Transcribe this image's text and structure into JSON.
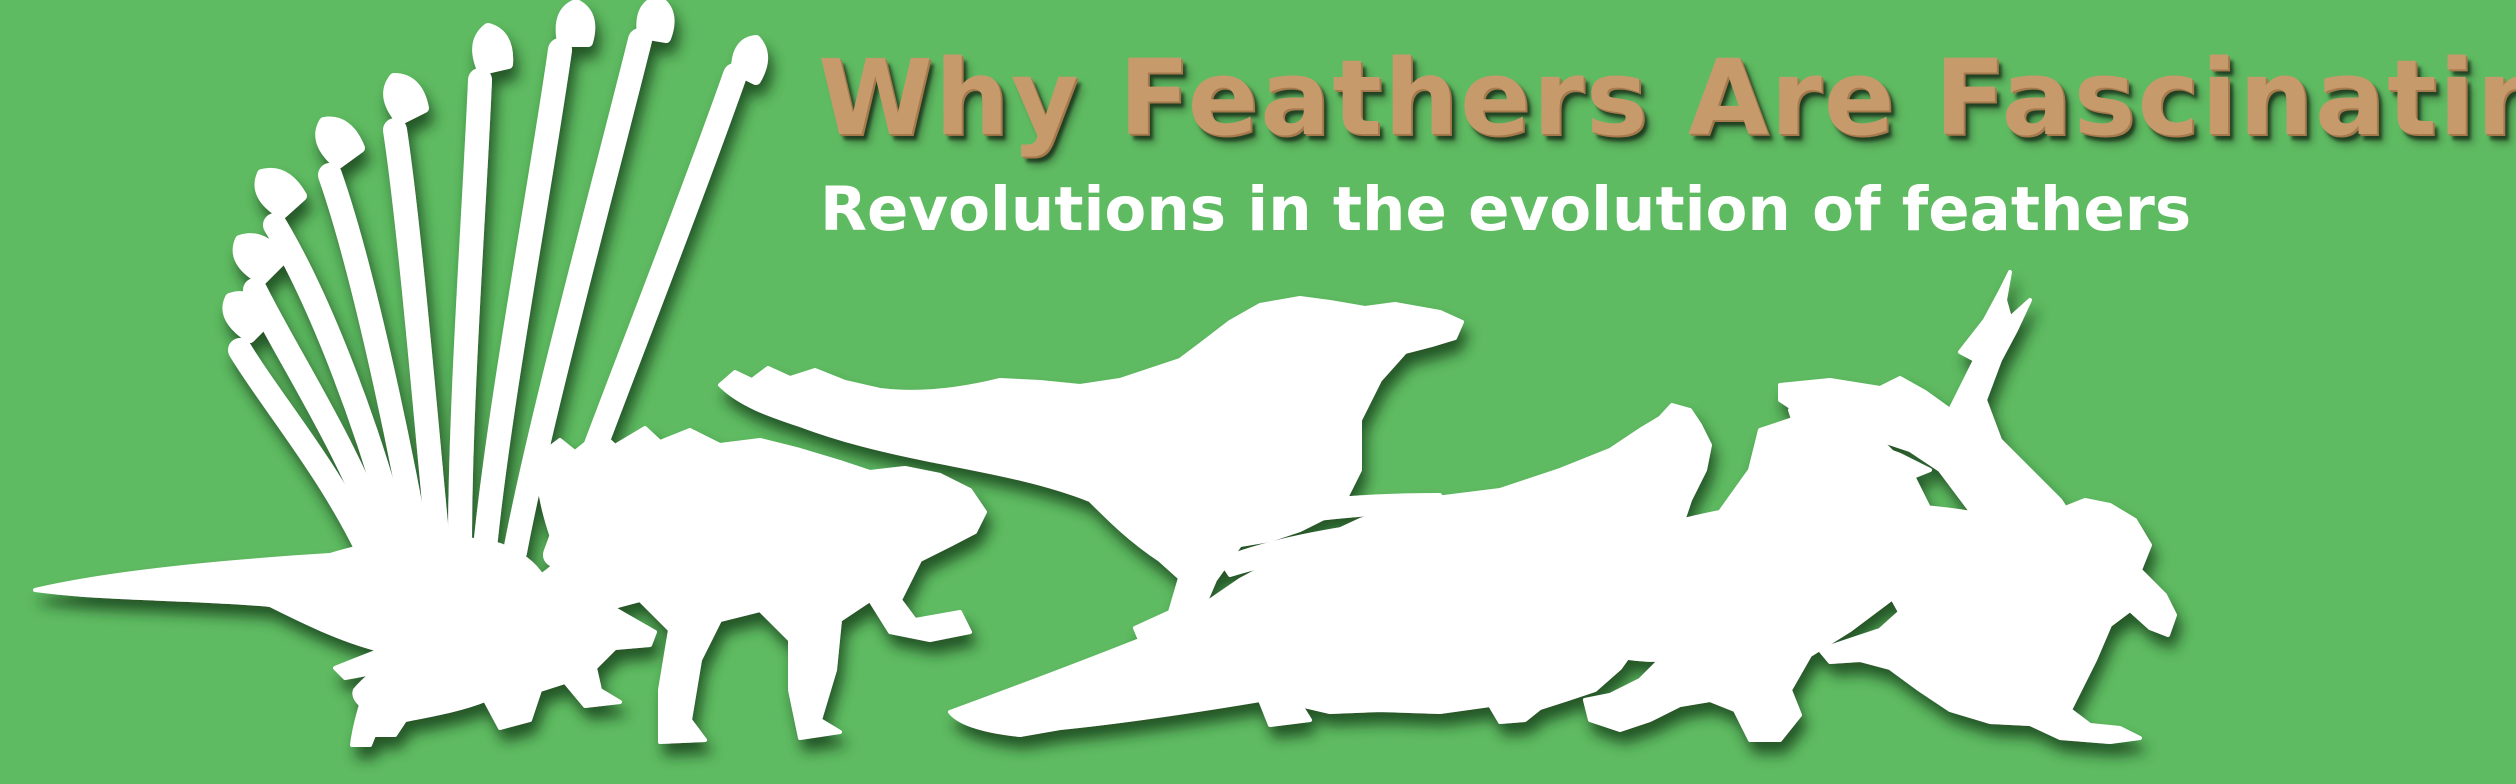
{
  "banner": {
    "title": "Why Feathers Are Fascinating",
    "subtitle": "Revolutions in the evolution of feathers",
    "colors": {
      "background": "#5fbb62",
      "title": "#c79a6c",
      "subtitle": "#ffffff",
      "silhouette": "#ffffff",
      "shadow": "#1d4a20"
    },
    "silhouettes": [
      "plumed-dinosaur-silhouette",
      "furry-mammal-silhouette",
      "small-mammal-silhouette",
      "feathered-raptor-silhouette",
      "gliding-dinosaur-silhouette",
      "archaeopteryx-silhouette",
      "running-bird-silhouette",
      "flying-bird-silhouette",
      "vulture-silhouette"
    ]
  }
}
